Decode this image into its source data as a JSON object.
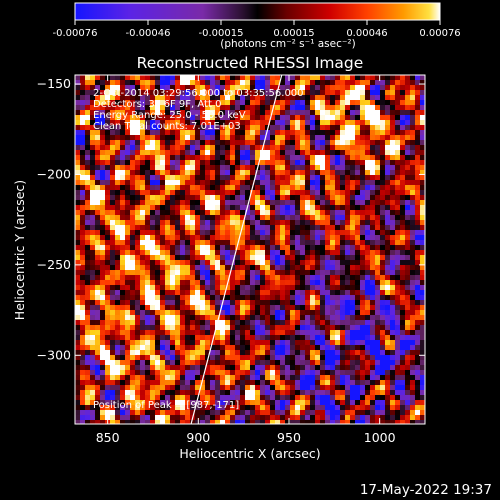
{
  "colorbar": {
    "ticks": [
      "-0.00076",
      "-0.00046",
      "-0.00015",
      "0.00015",
      "0.00046",
      "0.00076"
    ],
    "units": "(photons cm⁻² s⁻¹ asec⁻²)",
    "range": [
      -0.00076,
      0.00076
    ]
  },
  "chart_data": {
    "type": "heatmap",
    "title": "Reconstructed RHESSI Image",
    "xlabel": "Heliocentric X (arcsec)",
    "ylabel": "Heliocentric Y (arcsec)",
    "xlim": [
      832,
      1025
    ],
    "ylim": [
      -338,
      -145
    ],
    "xticks": [
      850,
      900,
      950,
      1000
    ],
    "xtick_labels": [
      "850",
      "900",
      "950",
      "1000"
    ],
    "yticks": [
      -150,
      -200,
      -250,
      -300
    ],
    "ytick_labels": [
      "−150",
      "−200",
      "−250",
      "−300"
    ],
    "annotations": [
      "2-Oct-2014 03:29:56.000 to 03:35:56.000",
      "Detectors: 3F 6F 9F, Att 0",
      "Energy Range: 25.0 - 50.0 keV",
      "Clean    Total counts: 7.01E+03"
    ],
    "peak_label": "Position of Peak = [987,-171]",
    "peak": [
      987,
      -171
    ],
    "limb_line": [
      [
        896,
        -338
      ],
      [
        946,
        -145
      ]
    ],
    "colorscale": [
      "#1515ff",
      "#5b23e6",
      "#7a2aa8",
      "#5a1f55",
      "#000000",
      "#6a0000",
      "#c40000",
      "#ff3a00",
      "#ff8c00",
      "#ffd21a",
      "#ffffff"
    ]
  },
  "footer": {
    "timestamp": "17-May-2022 19:37"
  }
}
